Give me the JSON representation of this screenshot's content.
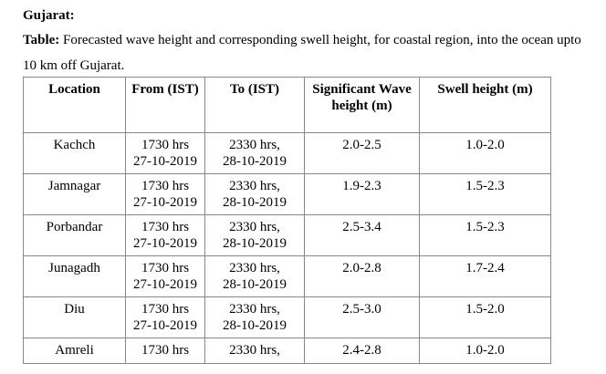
{
  "heading": "Gujarat:",
  "caption": {
    "label": "Table:",
    "text": "Forecasted wave height and corresponding swell height, for coastal region, into the ocean upto 10 km off Gujarat."
  },
  "table": {
    "header": [
      "Location",
      "From (IST)",
      "To (IST)",
      "Significant Wave height (m)",
      "Swell height (m)"
    ],
    "rows": [
      [
        "Kachch",
        [
          "1730 hrs",
          "27-10-2019"
        ],
        [
          "2330 hrs,",
          "28-10-2019"
        ],
        "2.0-2.5",
        "1.0-2.0"
      ],
      [
        "Jamnagar",
        [
          "1730 hrs",
          "27-10-2019"
        ],
        [
          "2330 hrs,",
          "28-10-2019"
        ],
        "1.9-2.3",
        "1.5-2.3"
      ],
      [
        "Porbandar",
        [
          "1730 hrs",
          "27-10-2019"
        ],
        [
          "2330 hrs,",
          "28-10-2019"
        ],
        "2.5-3.4",
        "1.5-2.3"
      ],
      [
        "Junagadh",
        [
          "1730 hrs",
          "27-10-2019"
        ],
        [
          "2330 hrs,",
          "28-10-2019"
        ],
        "2.0-2.8",
        "1.7-2.4"
      ],
      [
        "Diu",
        [
          "1730 hrs",
          "27-10-2019"
        ],
        [
          "2330 hrs,",
          "28-10-2019"
        ],
        "2.5-3.0",
        "1.5-2.0"
      ],
      [
        "Amreli",
        [
          "1730 hrs"
        ],
        [
          "2330 hrs,"
        ],
        "2.4-2.8",
        "1.0-2.0"
      ]
    ]
  }
}
